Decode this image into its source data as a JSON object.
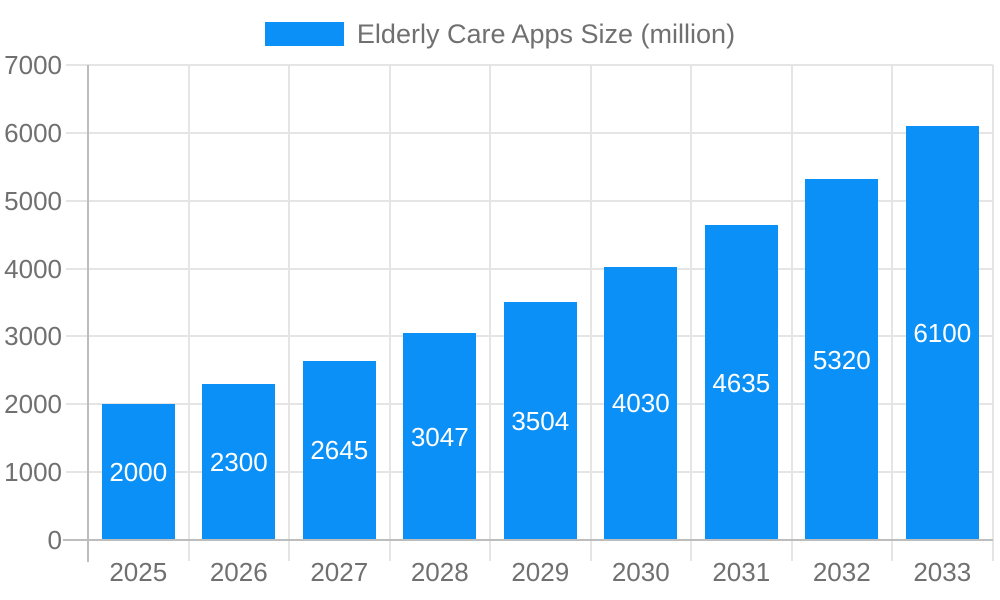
{
  "legend": {
    "label": "Elderly Care Apps Size (million)"
  },
  "chart_data": {
    "type": "bar",
    "title": "Elderly Care Apps Size (million)",
    "categories": [
      "2025",
      "2026",
      "2027",
      "2028",
      "2029",
      "2030",
      "2031",
      "2032",
      "2033"
    ],
    "values": [
      2000,
      2300,
      2645,
      3047,
      3504,
      4030,
      4635,
      5320,
      6100
    ],
    "bar_value_labels": [
      "2000",
      "2300",
      "2645",
      "3047",
      "3504",
      "4030",
      "4635",
      "5320",
      "6100"
    ],
    "xlabel": "",
    "ylabel": "",
    "ylim": [
      0,
      7000
    ],
    "yticks": [
      0,
      1000,
      2000,
      3000,
      4000,
      5000,
      6000,
      7000
    ],
    "grid": "both",
    "legend_position": "top-center",
    "colors": {
      "bar": "#0a90f6",
      "bar_label": "#ffffff",
      "axis_text": "#707070",
      "gridline": "#e5e5e5",
      "axis_line": "#bdbdbd",
      "background": "#ffffff"
    }
  }
}
